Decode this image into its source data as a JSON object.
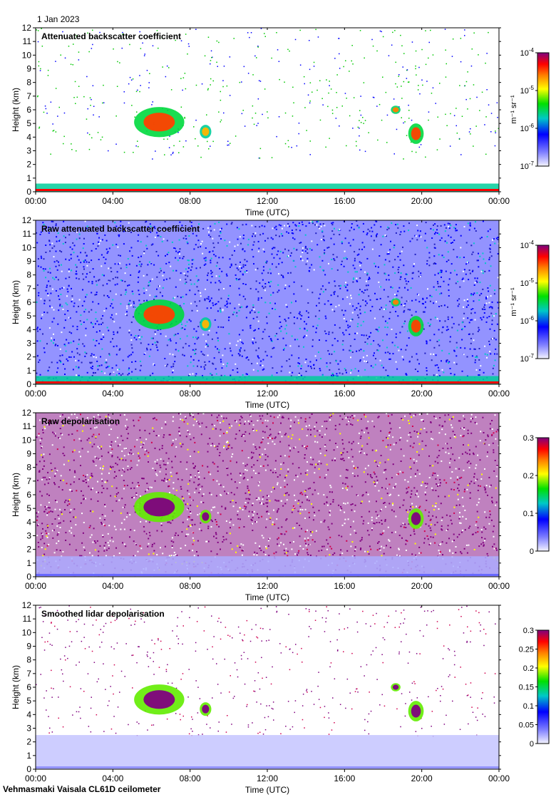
{
  "date_label": "1 Jan 2023",
  "footer": "Vehmasmaki Vaisala CL61D ceilometer",
  "chart_data": [
    {
      "type": "heatmap",
      "title": "Attenuated backscatter coefficient",
      "xlabel": "Time (UTC)",
      "ylabel": "Height (km)",
      "xticks": [
        "00:00",
        "04:00",
        "08:00",
        "12:00",
        "16:00",
        "20:00",
        "00:00"
      ],
      "yticks": [
        "0",
        "1",
        "2",
        "3",
        "4",
        "5",
        "6",
        "7",
        "8",
        "9",
        "10",
        "11",
        "12"
      ],
      "ylim": [
        0,
        12
      ],
      "xlim_hours": [
        0,
        24
      ],
      "colorbar": {
        "scale": "log",
        "unit_label": "m⁻¹ sr⁻¹",
        "ticks": [
          {
            "base": "10",
            "exp": "-4"
          },
          {
            "base": "10",
            "exp": "-5"
          },
          {
            "base": "10",
            "exp": "-6"
          },
          {
            "base": "10",
            "exp": "-7"
          }
        ]
      },
      "background": "clear",
      "features": [
        {
          "kind": "cloud",
          "t_start_h": 5.1,
          "t_end_h": 7.7,
          "h_low_km": 4.0,
          "h_high_km": 6.2,
          "level": 0.85
        },
        {
          "kind": "cloud",
          "t_start_h": 8.5,
          "t_end_h": 9.1,
          "h_low_km": 3.9,
          "h_high_km": 4.9,
          "level": 0.75
        },
        {
          "kind": "cloud",
          "t_start_h": 18.4,
          "t_end_h": 18.9,
          "h_low_km": 5.7,
          "h_high_km": 6.3,
          "level": 0.8
        },
        {
          "kind": "cloud",
          "t_start_h": 19.3,
          "t_end_h": 20.1,
          "h_low_km": 3.5,
          "h_high_km": 5.0,
          "level": 0.85
        },
        {
          "kind": "surface_layer",
          "t_start_h": 0,
          "t_end_h": 24,
          "h_low_km": 0,
          "h_high_km": 0.6,
          "level": 0.9
        }
      ]
    },
    {
      "type": "heatmap",
      "title": "Raw attenuated backscatter coefficient",
      "xlabel": "Time (UTC)",
      "ylabel": "Height (km)",
      "xticks": [
        "00:00",
        "04:00",
        "08:00",
        "12:00",
        "16:00",
        "20:00",
        "00:00"
      ],
      "yticks": [
        "0",
        "1",
        "2",
        "3",
        "4",
        "5",
        "6",
        "7",
        "8",
        "9",
        "10",
        "11",
        "12"
      ],
      "ylim": [
        0,
        12
      ],
      "xlim_hours": [
        0,
        24
      ],
      "colorbar": {
        "scale": "log",
        "unit_label": "m⁻¹ sr⁻¹",
        "ticks": [
          {
            "base": "10",
            "exp": "-4"
          },
          {
            "base": "10",
            "exp": "-5"
          },
          {
            "base": "10",
            "exp": "-6"
          },
          {
            "base": "10",
            "exp": "-7"
          }
        ]
      },
      "background": "noise_blue",
      "features": [
        {
          "kind": "cloud",
          "t_start_h": 5.1,
          "t_end_h": 7.7,
          "h_low_km": 4.0,
          "h_high_km": 6.2,
          "level": 0.85
        },
        {
          "kind": "cloud",
          "t_start_h": 8.5,
          "t_end_h": 9.1,
          "h_low_km": 3.9,
          "h_high_km": 4.9,
          "level": 0.75
        },
        {
          "kind": "cloud",
          "t_start_h": 18.4,
          "t_end_h": 18.9,
          "h_low_km": 5.7,
          "h_high_km": 6.3,
          "level": 0.8
        },
        {
          "kind": "cloud",
          "t_start_h": 19.3,
          "t_end_h": 20.1,
          "h_low_km": 3.5,
          "h_high_km": 5.0,
          "level": 0.85
        },
        {
          "kind": "surface_layer",
          "t_start_h": 0,
          "t_end_h": 24,
          "h_low_km": 0,
          "h_high_km": 0.6,
          "level": 0.9
        }
      ]
    },
    {
      "type": "heatmap",
      "title": "Raw depolarisation",
      "xlabel": "Time (UTC)",
      "ylabel": "Height (km)",
      "xticks": [
        "00:00",
        "04:00",
        "08:00",
        "12:00",
        "16:00",
        "20:00",
        "00:00"
      ],
      "yticks": [
        "0",
        "1",
        "2",
        "3",
        "4",
        "5",
        "6",
        "7",
        "8",
        "9",
        "10",
        "11",
        "12"
      ],
      "ylim": [
        0,
        12
      ],
      "xlim_hours": [
        0,
        24
      ],
      "colorbar": {
        "scale": "linear",
        "unit_label": "",
        "vmin": 0,
        "vmax": 0.3,
        "ticks": [
          "0.3",
          "0.2",
          "0.1",
          "0"
        ]
      },
      "background": "noise_purple",
      "features": [
        {
          "kind": "cloud",
          "t_start_h": 5.1,
          "t_end_h": 7.7,
          "h_low_km": 4.0,
          "h_high_km": 6.2,
          "level": 1.0
        },
        {
          "kind": "cloud",
          "t_start_h": 8.5,
          "t_end_h": 9.1,
          "h_low_km": 3.9,
          "h_high_km": 4.9,
          "level": 1.0
        },
        {
          "kind": "cloud",
          "t_start_h": 19.3,
          "t_end_h": 20.1,
          "h_low_km": 3.5,
          "h_high_km": 5.0,
          "level": 1.0
        },
        {
          "kind": "surface_layer",
          "t_start_h": 0,
          "t_end_h": 24,
          "h_low_km": 0,
          "h_high_km": 1.5,
          "level": 0.15
        }
      ]
    },
    {
      "type": "heatmap",
      "title": "Smoothed lidar depolarisation",
      "xlabel": "Time (UTC)",
      "ylabel": "Height (km)",
      "xticks": [
        "00:00",
        "04:00",
        "08:00",
        "12:00",
        "16:00",
        "20:00",
        "00:00"
      ],
      "yticks": [
        "0",
        "1",
        "2",
        "3",
        "4",
        "5",
        "6",
        "7",
        "8",
        "9",
        "10",
        "11",
        "12"
      ],
      "ylim": [
        0,
        12
      ],
      "xlim_hours": [
        0,
        24
      ],
      "colorbar": {
        "scale": "linear",
        "unit_label": "",
        "vmin": 0,
        "vmax": 0.3,
        "ticks": [
          "0.3",
          "0.25",
          "0.2",
          "0.15",
          "0.1",
          "0.05",
          "0"
        ]
      },
      "background": "clear",
      "features": [
        {
          "kind": "cloud",
          "t_start_h": 5.1,
          "t_end_h": 7.7,
          "h_low_km": 4.0,
          "h_high_km": 6.2,
          "level": 1.0
        },
        {
          "kind": "cloud",
          "t_start_h": 8.5,
          "t_end_h": 9.1,
          "h_low_km": 3.9,
          "h_high_km": 4.9,
          "level": 1.0
        },
        {
          "kind": "cloud",
          "t_start_h": 18.4,
          "t_end_h": 18.9,
          "h_low_km": 5.7,
          "h_high_km": 6.3,
          "level": 1.0
        },
        {
          "kind": "cloud",
          "t_start_h": 19.3,
          "t_end_h": 20.1,
          "h_low_km": 3.5,
          "h_high_km": 5.0,
          "level": 1.0
        },
        {
          "kind": "surface_layer",
          "t_start_h": 0,
          "t_end_h": 24,
          "h_low_km": 0,
          "h_high_km": 2.5,
          "level": 0.1
        }
      ]
    }
  ]
}
